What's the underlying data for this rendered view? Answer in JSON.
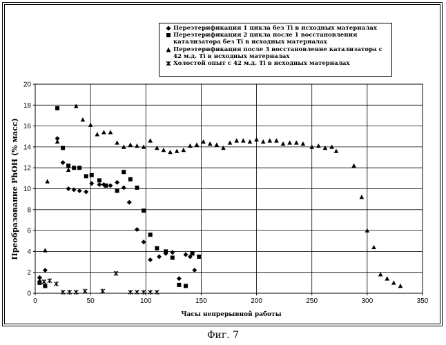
{
  "caption": "Фиг. 7",
  "chart_data": {
    "type": "scatter",
    "title": "",
    "xlabel": "Часы непрерывной работы",
    "ylabel": "Преобразование PhOH (% масс)",
    "xlim": [
      0,
      350
    ],
    "ylim": [
      0,
      20
    ],
    "x_ticks": [
      0,
      50,
      100,
      150,
      200,
      250,
      300,
      350
    ],
    "y_ticks": [
      0,
      2,
      4,
      6,
      8,
      10,
      12,
      14,
      16,
      18,
      20
    ],
    "grid": "horizontal",
    "legend_position": "top-right",
    "series": [
      {
        "name": "Переэтерификация 1 цикла без Ti  в исходных материалах",
        "marker": "diamond",
        "points": [
          [
            4,
            1.5
          ],
          [
            9,
            2.2
          ],
          [
            20,
            14.8
          ],
          [
            25,
            12.5
          ],
          [
            30,
            10.0
          ],
          [
            35,
            9.9
          ],
          [
            40,
            9.8
          ],
          [
            46,
            9.7
          ],
          [
            51,
            10.5
          ],
          [
            58,
            10.4
          ],
          [
            62,
            10.4
          ],
          [
            68,
            10.3
          ],
          [
            74,
            10.6
          ],
          [
            80,
            10.1
          ],
          [
            85,
            8.7
          ],
          [
            92,
            6.1
          ],
          [
            98,
            4.9
          ],
          [
            104,
            3.2
          ],
          [
            112,
            3.5
          ],
          [
            118,
            3.8
          ],
          [
            124,
            3.9
          ],
          [
            130,
            1.4
          ],
          [
            136,
            3.7
          ],
          [
            140,
            3.5
          ],
          [
            144,
            2.2
          ]
        ]
      },
      {
        "name": "Переэтерификация 2 цикла после 1 восстановления катализатора без Ti в исходных материалах",
        "marker": "square",
        "points": [
          [
            4,
            1.0
          ],
          [
            9,
            0.7
          ],
          [
            20,
            17.7
          ],
          [
            25,
            13.9
          ],
          [
            30,
            12.2
          ],
          [
            35,
            12.0
          ],
          [
            40,
            12.0
          ],
          [
            46,
            11.2
          ],
          [
            51,
            11.3
          ],
          [
            58,
            10.8
          ],
          [
            64,
            10.3
          ],
          [
            74,
            9.8
          ],
          [
            80,
            11.6
          ],
          [
            86,
            10.9
          ],
          [
            92,
            10.1
          ],
          [
            98,
            7.9
          ],
          [
            104,
            5.6
          ],
          [
            110,
            4.3
          ],
          [
            118,
            4.0
          ],
          [
            124,
            3.4
          ],
          [
            130,
            0.8
          ],
          [
            136,
            0.7
          ],
          [
            142,
            3.8
          ],
          [
            148,
            3.5
          ]
        ]
      },
      {
        "name": "Переэтерификация после 3 восстановление катализатора с 42 м.д. Ti в исходных материалах",
        "marker": "triangle",
        "points": [
          [
            9,
            4.1
          ],
          [
            11,
            10.7
          ],
          [
            20,
            14.5
          ],
          [
            30,
            11.8
          ],
          [
            37,
            17.9
          ],
          [
            43,
            16.6
          ],
          [
            50,
            16.1
          ],
          [
            56,
            15.2
          ],
          [
            62,
            15.4
          ],
          [
            68,
            15.4
          ],
          [
            74,
            14.4
          ],
          [
            80,
            14.0
          ],
          [
            86,
            14.2
          ],
          [
            92,
            14.1
          ],
          [
            98,
            14.0
          ],
          [
            104,
            14.6
          ],
          [
            110,
            13.9
          ],
          [
            116,
            13.7
          ],
          [
            122,
            13.5
          ],
          [
            128,
            13.6
          ],
          [
            134,
            13.7
          ],
          [
            140,
            14.1
          ],
          [
            146,
            14.2
          ],
          [
            152,
            14.5
          ],
          [
            158,
            14.3
          ],
          [
            164,
            14.2
          ],
          [
            170,
            13.9
          ],
          [
            176,
            14.4
          ],
          [
            182,
            14.6
          ],
          [
            188,
            14.6
          ],
          [
            194,
            14.5
          ],
          [
            200,
            14.7
          ],
          [
            206,
            14.5
          ],
          [
            212,
            14.6
          ],
          [
            218,
            14.6
          ],
          [
            224,
            14.3
          ],
          [
            230,
            14.4
          ],
          [
            236,
            14.4
          ],
          [
            242,
            14.3
          ],
          [
            250,
            14.0
          ],
          [
            256,
            14.1
          ],
          [
            262,
            13.9
          ],
          [
            268,
            14.0
          ],
          [
            272,
            13.6
          ],
          [
            288,
            12.2
          ],
          [
            295,
            9.2
          ],
          [
            300,
            6.0
          ],
          [
            306,
            4.4
          ],
          [
            312,
            1.8
          ],
          [
            318,
            1.4
          ],
          [
            324,
            1.0
          ],
          [
            330,
            0.7
          ]
        ]
      },
      {
        "name": "Холостой опыт с 42 м.д. Ti в исходных материалах",
        "marker": "cross",
        "points": [
          [
            4,
            1.3
          ],
          [
            8,
            1.1
          ],
          [
            13,
            1.2
          ],
          [
            19,
            0.9
          ],
          [
            25,
            0.1
          ],
          [
            31,
            0.1
          ],
          [
            37,
            0.1
          ],
          [
            45,
            0.2
          ],
          [
            61,
            0.2
          ],
          [
            73,
            1.9
          ],
          [
            86,
            0.1
          ],
          [
            92,
            0.1
          ],
          [
            98,
            0.1
          ],
          [
            104,
            0.1
          ],
          [
            110,
            0.1
          ]
        ]
      }
    ]
  }
}
